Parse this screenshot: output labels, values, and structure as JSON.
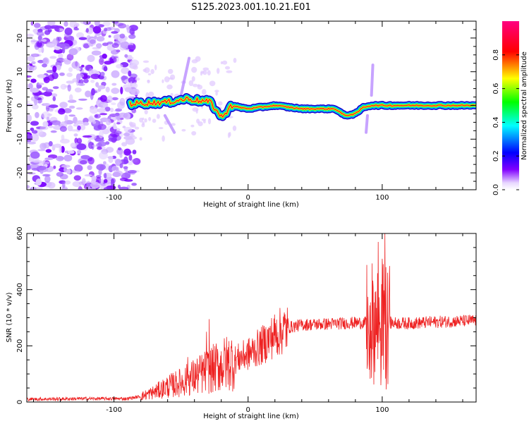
{
  "figure": {
    "title": "S125.2023.001.10.21.E01"
  },
  "chart_data": [
    {
      "type": "heatmap",
      "xlabel": "Height of straight line (km)",
      "ylabel": "Frequency (Hz)",
      "xlim": [
        -165,
        170
      ],
      "ylim": [
        -25,
        25
      ],
      "x_ticks": [
        -100,
        0,
        100
      ],
      "y_ticks": [
        -20,
        -10,
        0,
        10,
        20
      ],
      "colorbar": {
        "label": "Normalized spectral amplitude",
        "range": [
          0.0,
          1.0
        ],
        "ticks": [
          "0.0",
          "0.2",
          "0.4",
          "0.6",
          "0.8"
        ],
        "colormap": [
          "#ffffff",
          "#7f00ff",
          "#0000ff",
          "#00ffff",
          "#00ff00",
          "#ffff00",
          "#ff0000",
          "#ff0080"
        ]
      },
      "ridge": {
        "x_start": -88,
        "x_end": 170,
        "points": [
          {
            "x": -88,
            "y": 0.5
          },
          {
            "x": -60,
            "y": 1
          },
          {
            "x": -45,
            "y": 2
          },
          {
            "x": -38,
            "y": 1.5
          },
          {
            "x": -28,
            "y": 1
          },
          {
            "x": -22,
            "y": -2.5
          },
          {
            "x": -18,
            "y": -3.5
          },
          {
            "x": -14,
            "y": 0
          },
          {
            "x": 0,
            "y": -1
          },
          {
            "x": 20,
            "y": 0
          },
          {
            "x": 40,
            "y": -1
          },
          {
            "x": 65,
            "y": -1
          },
          {
            "x": 72,
            "y": -3
          },
          {
            "x": 80,
            "y": -2.5
          },
          {
            "x": 86,
            "y": -0.5
          },
          {
            "x": 92,
            "y": 0
          },
          {
            "x": 100,
            "y": 0
          },
          {
            "x": 170,
            "y": 0
          }
        ]
      },
      "noise_region": {
        "x_start": -165,
        "x_end": -83,
        "y_range": [
          -25,
          25
        ]
      }
    },
    {
      "type": "line",
      "xlabel": "Height of straight line (km)",
      "ylabel": "SNR (10 * v/v)",
      "xlim": [
        -165,
        170
      ],
      "ylim": [
        0,
        600
      ],
      "x_ticks": [
        -100,
        0,
        100
      ],
      "y_ticks": [
        0,
        200,
        400,
        600
      ],
      "color": "#ee2222",
      "envelope": [
        {
          "x": -165,
          "y": 10
        },
        {
          "x": -120,
          "y": 12
        },
        {
          "x": -90,
          "y": 12
        },
        {
          "x": -80,
          "y": 20
        },
        {
          "x": -70,
          "y": 35
        },
        {
          "x": -60,
          "y": 55
        },
        {
          "x": -50,
          "y": 70
        },
        {
          "x": -40,
          "y": 90
        },
        {
          "x": -30,
          "y": 110
        },
        {
          "x": -20,
          "y": 130
        },
        {
          "x": -10,
          "y": 150
        },
        {
          "x": 0,
          "y": 170
        },
        {
          "x": 10,
          "y": 200
        },
        {
          "x": 20,
          "y": 240
        },
        {
          "x": 30,
          "y": 265
        },
        {
          "x": 40,
          "y": 275
        },
        {
          "x": 60,
          "y": 278
        },
        {
          "x": 80,
          "y": 282
        },
        {
          "x": 100,
          "y": 282
        },
        {
          "x": 120,
          "y": 280
        },
        {
          "x": 140,
          "y": 285
        },
        {
          "x": 170,
          "y": 290
        }
      ],
      "spikes": [
        {
          "x": -29,
          "y": 295
        },
        {
          "x": -31,
          "y": 250
        },
        {
          "x": -45,
          "y": 160
        },
        {
          "x": 97,
          "y": 570
        },
        {
          "x": 100,
          "y": 510
        },
        {
          "x": 102,
          "y": 600
        },
        {
          "x": 103,
          "y": 45
        },
        {
          "x": 99,
          "y": 60
        }
      ]
    }
  ]
}
